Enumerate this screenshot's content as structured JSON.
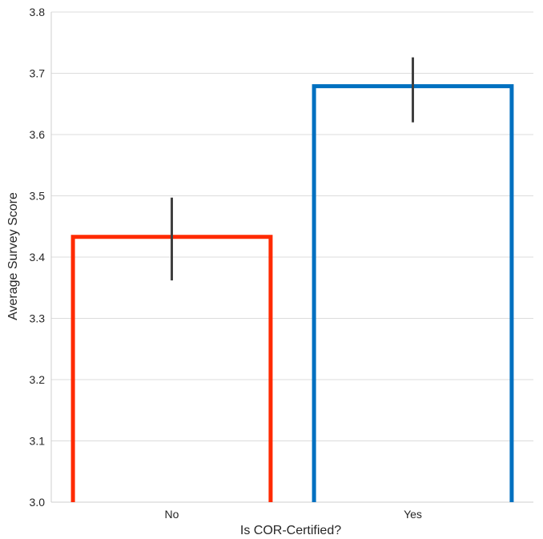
{
  "chart_data": {
    "type": "bar",
    "title": "",
    "xlabel": "Is COR-Certified?",
    "ylabel": "Average Survey Score",
    "categories": [
      "No",
      "Yes"
    ],
    "values": [
      3.433,
      3.679
    ],
    "error_bars": [
      {
        "low": 3.362,
        "high": 3.497
      },
      {
        "low": 3.62,
        "high": 3.726
      }
    ],
    "ylim": [
      3.0,
      3.8
    ],
    "yticks": [
      "3.0",
      "3.1",
      "3.2",
      "3.3",
      "3.4",
      "3.5",
      "3.6",
      "3.7",
      "3.8"
    ],
    "bar_style": "outline",
    "bar_colors": [
      "#ff2a00",
      "#0070c0"
    ],
    "error_bar_color": "#404040",
    "grid": true,
    "legend": "none"
  }
}
